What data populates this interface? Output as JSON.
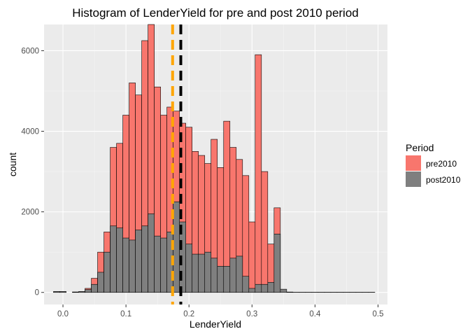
{
  "chart_data": {
    "type": "histogram",
    "title": "Histogram of LenderYield for pre and post 2010 period",
    "xlabel": "LenderYield",
    "ylabel": "count",
    "xlim": [
      -0.03,
      0.515
    ],
    "ylim": [
      -300,
      6650
    ],
    "x_ticks": [
      {
        "value": 0.0,
        "label": "0.0"
      },
      {
        "value": 0.1,
        "label": "0.1"
      },
      {
        "value": 0.2,
        "label": "0.2"
      },
      {
        "value": 0.3,
        "label": "0.3"
      },
      {
        "value": 0.4,
        "label": "0.4"
      },
      {
        "value": 0.5,
        "label": "0.5"
      }
    ],
    "y_ticks": [
      {
        "value": 0,
        "label": "0"
      },
      {
        "value": 2000,
        "label": "2000"
      },
      {
        "value": 4000,
        "label": "4000"
      },
      {
        "value": 6000,
        "label": "6000"
      }
    ],
    "grid": true,
    "legend": {
      "title": "Period",
      "position": "right"
    },
    "bin_edges": [
      -0.015,
      -0.005,
      0.005,
      0.015,
      0.025,
      0.035,
      0.045,
      0.055,
      0.065,
      0.075,
      0.085,
      0.095,
      0.105,
      0.115,
      0.125,
      0.135,
      0.145,
      0.155,
      0.165,
      0.175,
      0.185,
      0.195,
      0.205,
      0.215,
      0.225,
      0.235,
      0.245,
      0.255,
      0.265,
      0.275,
      0.285,
      0.295,
      0.305,
      0.315,
      0.325,
      0.335,
      0.345,
      0.355,
      0.365,
      0.375,
      0.385,
      0.395,
      0.405,
      0.415,
      0.425,
      0.435,
      0.445,
      0.455,
      0.465,
      0.475,
      0.485,
      0.495
    ],
    "series": [
      {
        "name": "pre2010",
        "color": "#F8766D",
        "values": [
          20,
          20,
          0,
          10,
          20,
          100,
          350,
          1000,
          1500,
          3600,
          3700,
          4400,
          5200,
          4900,
          6250,
          6650,
          5100,
          4400,
          4600,
          4500,
          4200,
          4100,
          3500,
          3400,
          3200,
          3800,
          3100,
          4250,
          3600,
          3300,
          2900,
          1750,
          5900,
          3000,
          1200,
          2100,
          0,
          0,
          0,
          0,
          0,
          0,
          0,
          0,
          0,
          0,
          0,
          0,
          0,
          0,
          0
        ]
      },
      {
        "name": "post2010",
        "color": "#7F7F7F",
        "values": [
          20,
          20,
          0,
          10,
          20,
          70,
          200,
          500,
          1000,
          1650,
          1600,
          1350,
          1300,
          1550,
          1650,
          1950,
          1400,
          1350,
          1500,
          2250,
          1750,
          1200,
          950,
          950,
          1000,
          850,
          650,
          650,
          850,
          900,
          400,
          100,
          200,
          200,
          250,
          1450,
          80,
          10,
          5,
          5,
          5,
          5,
          5,
          5,
          5,
          5,
          5,
          5,
          5,
          5,
          5
        ]
      }
    ],
    "reference_lines": [
      {
        "x": 0.174,
        "color": "#FFA500",
        "style": "dashed"
      },
      {
        "x": 0.187,
        "color": "#000000",
        "style": "dashed"
      }
    ]
  }
}
